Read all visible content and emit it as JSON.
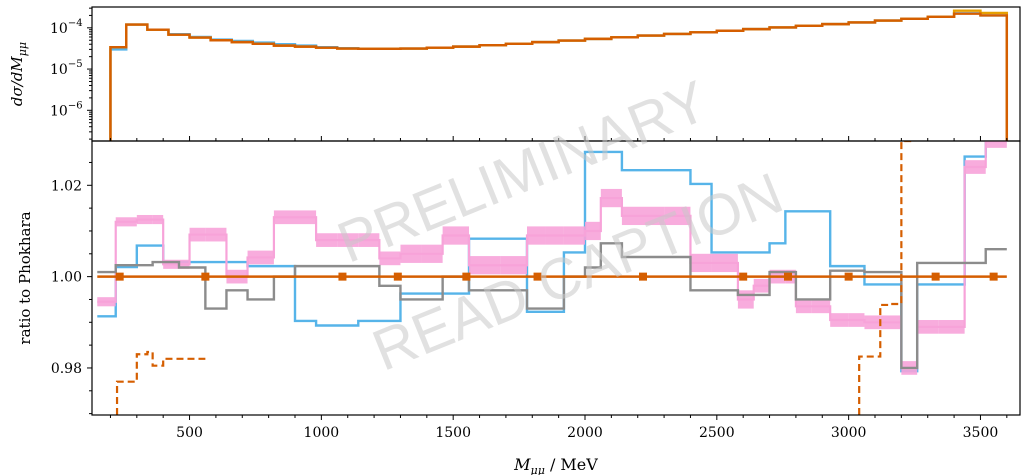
{
  "watermark": {
    "line1": "PRELIMINARY",
    "line2": "READ CAPTION"
  },
  "chart_data": [
    {
      "type": "line",
      "panel": "top",
      "ylabel": "dσ/dM_μμ",
      "yscale": "log",
      "ylim": [
        1.8e-07,
        0.00032
      ],
      "xlim": [
        130,
        3650
      ],
      "yticks": [
        {
          "value": 0.0001,
          "base": "10",
          "exp": "−4"
        },
        {
          "value": 1e-05,
          "base": "10",
          "exp": "−5"
        },
        {
          "value": 1e-06,
          "base": "10",
          "exp": "−6"
        }
      ],
      "bin_edges": [
        200,
        260,
        340,
        420,
        500,
        580,
        660,
        740,
        820,
        900,
        980,
        1060,
        1140,
        1220,
        1300,
        1400,
        1500,
        1600,
        1700,
        1800,
        1900,
        2000,
        2100,
        2200,
        2300,
        2400,
        2500,
        2600,
        2700,
        2800,
        2900,
        3000,
        3100,
        3200,
        3300,
        3400,
        3500,
        3600
      ],
      "series": [
        {
          "color": "#56b4e9",
          "values": [
            3e-05,
            0.00012,
            9e-05,
            7e-05,
            6e-05,
            5.2e-05,
            4.8e-05,
            4.4e-05,
            4e-05,
            3.7e-05,
            3.4e-05,
            3.2e-05,
            3.1e-05,
            3.1e-05,
            3.15e-05,
            3.3e-05,
            3.5e-05,
            3.8e-05,
            4.1e-05,
            4.5e-05,
            4.9e-05,
            5.4e-05,
            5.9e-05,
            6.5e-05,
            7.1e-05,
            7.8e-05,
            8.5e-05,
            9.3e-05,
            0.000102,
            0.000112,
            0.000123,
            0.000135,
            0.00015,
            0.000165,
            0.000185,
            0.000225,
            0.0002
          ]
        },
        {
          "color": "#e69f00",
          "values": [
            3.4e-05,
            0.00012,
            9e-05,
            6.8e-05,
            5.8e-05,
            5e-05,
            4.5e-05,
            4.1e-05,
            3.7e-05,
            3.5e-05,
            3.3e-05,
            3.15e-05,
            3.1e-05,
            3.1e-05,
            3.15e-05,
            3.3e-05,
            3.5e-05,
            3.8e-05,
            4.1e-05,
            4.5e-05,
            4.9e-05,
            5.4e-05,
            5.9e-05,
            6.5e-05,
            7.1e-05,
            7.8e-05,
            8.5e-05,
            9.3e-05,
            0.000102,
            0.000112,
            0.000123,
            0.000135,
            0.00015,
            0.000165,
            0.000185,
            0.00026,
            0.00023
          ]
        },
        {
          "color": "#d55e00",
          "values": [
            3.4e-05,
            0.00012,
            9e-05,
            6.8e-05,
            5.8e-05,
            5e-05,
            4.5e-05,
            4.1e-05,
            3.7e-05,
            3.5e-05,
            3.3e-05,
            3.15e-05,
            3.1e-05,
            3.1e-05,
            3.15e-05,
            3.3e-05,
            3.5e-05,
            3.8e-05,
            4.1e-05,
            4.5e-05,
            4.9e-05,
            5.4e-05,
            5.9e-05,
            6.5e-05,
            7.1e-05,
            7.8e-05,
            8.5e-05,
            9.3e-05,
            0.000102,
            0.000112,
            0.000123,
            0.000135,
            0.00015,
            0.000165,
            0.000185,
            0.00022,
            0.0002
          ]
        }
      ]
    },
    {
      "type": "line",
      "panel": "bottom",
      "xlabel": "M_μμ / MeV",
      "ylabel": "ratio to Phokhara",
      "xlim": [
        130,
        3650
      ],
      "ylim": [
        0.9697,
        1.0297
      ],
      "xticks": [
        500,
        1000,
        1500,
        2000,
        2500,
        3000,
        3500
      ],
      "yticks": [
        0.98,
        1.0,
        1.02
      ],
      "xtick_labels": [
        "500",
        "1000",
        "1500",
        "2000",
        "2500",
        "3000",
        "3500"
      ],
      "ytick_labels": [
        "0.98",
        "1.00",
        "1.02"
      ],
      "bin_edges": [
        150,
        220,
        300,
        360,
        400,
        460,
        500,
        560,
        640,
        720,
        820,
        900,
        980,
        1060,
        1140,
        1220,
        1300,
        1380,
        1460,
        1560,
        1680,
        1780,
        1850,
        1920,
        2000,
        2060,
        2140,
        2220,
        2300,
        2400,
        2480,
        2580,
        2640,
        2700,
        2760,
        2800,
        2860,
        2930,
        3000,
        3060,
        3120,
        3200,
        3260,
        3340,
        3440,
        3520,
        3600
      ],
      "series": [
        {
          "color": "#56b4e9",
          "kind": "step",
          "values": [
            0.9913,
            1.0021,
            1.0068,
            1.0068,
            1.0032,
            1.0032,
            1.0032,
            1.0032,
            1.0032,
            1.0023,
            1.0023,
            0.9903,
            0.9893,
            0.9893,
            0.9903,
            0.9903,
            0.9963,
            0.9963,
            0.9963,
            1.0083,
            1.0083,
            0.9923,
            0.9923,
            1.0053,
            1.0273,
            1.0273,
            1.0233,
            1.0233,
            1.0233,
            1.0203,
            1.0053,
            1.0053,
            1.0053,
            1.0073,
            1.0143,
            1.0143,
            1.0143,
            1.0023,
            1.0023,
            0.9983,
            0.9983,
            0.9793,
            0.9983,
            0.9983,
            1.0263,
            1.0297
          ]
        },
        {
          "color": "#f7a3d9",
          "kind": "band",
          "values": [
            0.9945,
            1.012,
            1.0125,
            1.0125,
            1.0027,
            1.0027,
            1.0092,
            1.0092,
            1.0,
            1.0042,
            1.013,
            1.013,
            1.008,
            1.008,
            1.008,
            1.004,
            1.005,
            1.005,
            1.009,
            1.0025,
            1.0025,
            1.009,
            1.009,
            1.009,
            1.01,
            1.0172,
            1.0133,
            1.0133,
            1.0133,
            1.003,
            1.003,
            0.995,
            0.998,
            1.0,
            1.0,
            0.9935,
            0.9935,
            0.9905,
            0.9905,
            0.99,
            0.99,
            0.98,
            0.989,
            0.989,
            1.024,
            1.0297
          ],
          "widths": [
            0.002,
            0.002,
            0.002,
            0.002,
            0.002,
            0.002,
            0.003,
            0.003,
            0.003,
            0.003,
            0.003,
            0.003,
            0.003,
            0.003,
            0.003,
            0.003,
            0.004,
            0.004,
            0.004,
            0.004,
            0.004,
            0.004,
            0.004,
            0.004,
            0.004,
            0.004,
            0.004,
            0.004,
            0.004,
            0.004,
            0.004,
            0.004,
            0.003,
            0.003,
            0.003,
            0.003,
            0.003,
            0.003,
            0.003,
            0.003,
            0.003,
            0.003,
            0.003,
            0.003,
            0.003,
            0.003
          ]
        },
        {
          "color": "#8c8c8c",
          "kind": "step",
          "values": [
            1.001,
            1.0025,
            1.0025,
            1.0032,
            1.0032,
            1.002,
            1.002,
            0.993,
            0.997,
            0.995,
            1.0,
            1.0023,
            1.0023,
            1.0023,
            1.0023,
            0.998,
            0.995,
            0.995,
            1.0,
            0.997,
            0.997,
            0.993,
            0.993,
            1.0,
            1.002,
            1.0073,
            1.0043,
            1.0043,
            1.0043,
            0.997,
            0.997,
            0.996,
            0.996,
            1.001,
            1.001,
            0.995,
            0.995,
            1.0013,
            1.0013,
            1.001,
            1.001,
            0.98,
            1.003,
            1.003,
            1.003,
            1.006
          ]
        },
        {
          "color": "#d55e00",
          "kind": "step",
          "values": [
            1.0,
            1.0,
            1.0,
            1.0,
            1.0,
            1.0,
            1.0,
            1.0,
            1.0,
            1.0,
            1.0,
            1.0,
            1.0,
            1.0,
            1.0,
            1.0,
            1.0,
            1.0,
            1.0,
            1.0,
            1.0,
            1.0,
            1.0,
            1.0,
            1.0,
            1.0,
            1.0,
            1.0,
            1.0,
            1.0,
            1.0,
            1.0,
            1.0,
            1.0,
            1.0,
            1.0,
            1.0,
            1.0,
            1.0,
            1.0,
            1.0,
            1.0,
            1.0,
            1.0,
            1.0,
            1.0
          ]
        },
        {
          "color": "#d55e00",
          "kind": "dashed-step",
          "segments": [
            {
              "edges": [
                225,
                260,
                300,
                340,
                360,
                400,
                460,
                500,
                560
              ],
              "values": [
                0.977,
                0.977,
                0.983,
                0.9835,
                0.9805,
                0.982,
                0.982,
                0.982
              ]
            },
            {
              "edges": [
                3040,
                3120,
                3160,
                3200,
                3240
              ],
              "values": [
                0.9825,
                0.9938,
                0.994,
                1.0297
              ]
            }
          ]
        }
      ]
    }
  ]
}
